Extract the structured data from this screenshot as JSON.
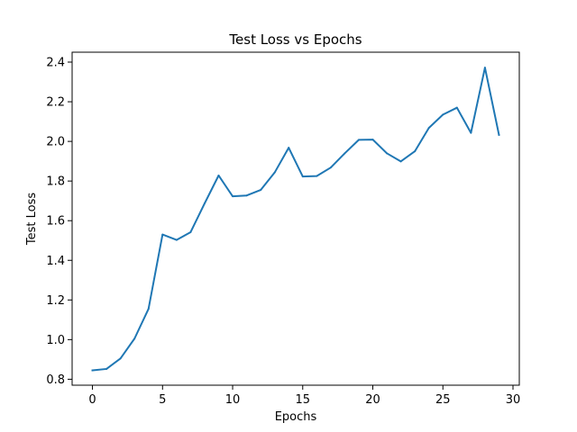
{
  "chart_data": {
    "type": "line",
    "title": "Test Loss vs Epochs",
    "xlabel": "Epochs",
    "ylabel": "Test Loss",
    "xlim": [
      -1.45,
      30.45
    ],
    "ylim": [
      0.77,
      2.45
    ],
    "xticks": [
      0,
      5,
      10,
      15,
      20,
      25,
      30
    ],
    "xtick_labels": [
      "0",
      "5",
      "10",
      "15",
      "20",
      "25",
      "30"
    ],
    "yticks": [
      0.8,
      1.0,
      1.2,
      1.4,
      1.6,
      1.8,
      2.0,
      2.2,
      2.4
    ],
    "ytick_labels": [
      "0.8",
      "1.0",
      "1.2",
      "1.4",
      "1.6",
      "1.8",
      "2.0",
      "2.2",
      "2.4"
    ],
    "grid": false,
    "series": [
      {
        "color": "#1f77b4",
        "x": [
          0,
          1,
          2,
          3,
          4,
          5,
          6,
          7,
          8,
          9,
          10,
          11,
          12,
          13,
          14,
          15,
          16,
          17,
          18,
          19,
          20,
          21,
          22,
          23,
          24,
          25,
          26,
          27,
          28,
          29
        ],
        "values": [
          0.845,
          0.852,
          0.905,
          1.005,
          1.155,
          1.53,
          1.503,
          1.542,
          1.687,
          1.828,
          1.723,
          1.727,
          1.755,
          1.843,
          1.968,
          1.823,
          1.825,
          1.868,
          1.94,
          2.008,
          2.009,
          1.94,
          1.899,
          1.95,
          2.068,
          2.135,
          2.17,
          2.043,
          2.372,
          2.033
        ]
      }
    ]
  }
}
